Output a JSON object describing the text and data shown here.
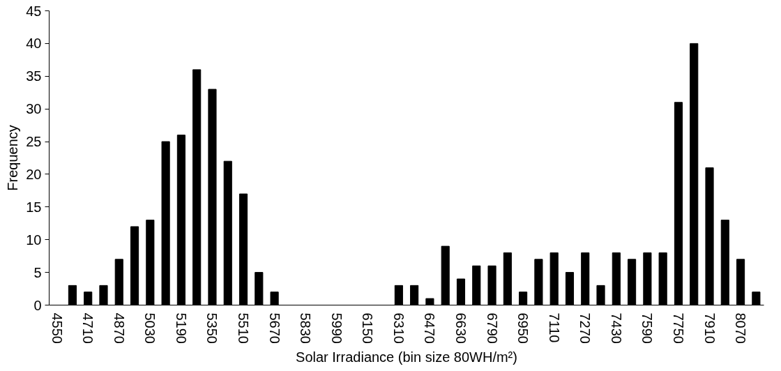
{
  "chart_data": {
    "type": "bar",
    "xlabel": "Solar Irradiance (bin size 80WH/m²)",
    "ylabel": "Frequency",
    "categories": [
      "4550",
      null,
      "4710",
      null,
      "4870",
      null,
      "5030",
      null,
      "5190",
      null,
      "5350",
      null,
      "5510",
      null,
      "5670",
      null,
      "5830",
      null,
      "5990",
      null,
      "6150",
      null,
      "6310",
      null,
      "6470",
      null,
      "6630",
      null,
      "6790",
      null,
      "6950",
      null,
      "7110",
      null,
      "7270",
      null,
      "7430",
      null,
      "7590",
      null,
      "7750",
      null,
      "7910",
      null,
      "8070",
      null
    ],
    "values": [
      0,
      3,
      2,
      3,
      7,
      12,
      13,
      25,
      26,
      36,
      33,
      22,
      17,
      5,
      2,
      0,
      0,
      0,
      0,
      0,
      0,
      0,
      3,
      3,
      1,
      9,
      4,
      6,
      6,
      8,
      2,
      7,
      8,
      5,
      8,
      3,
      8,
      7,
      8,
      8,
      31,
      40,
      21,
      13,
      7,
      2
    ],
    "color": "#000000",
    "ylim": [
      0,
      45
    ],
    "yticks": [
      0,
      5,
      10,
      15,
      20,
      25,
      30,
      35,
      40,
      45
    ],
    "grid": false
  }
}
